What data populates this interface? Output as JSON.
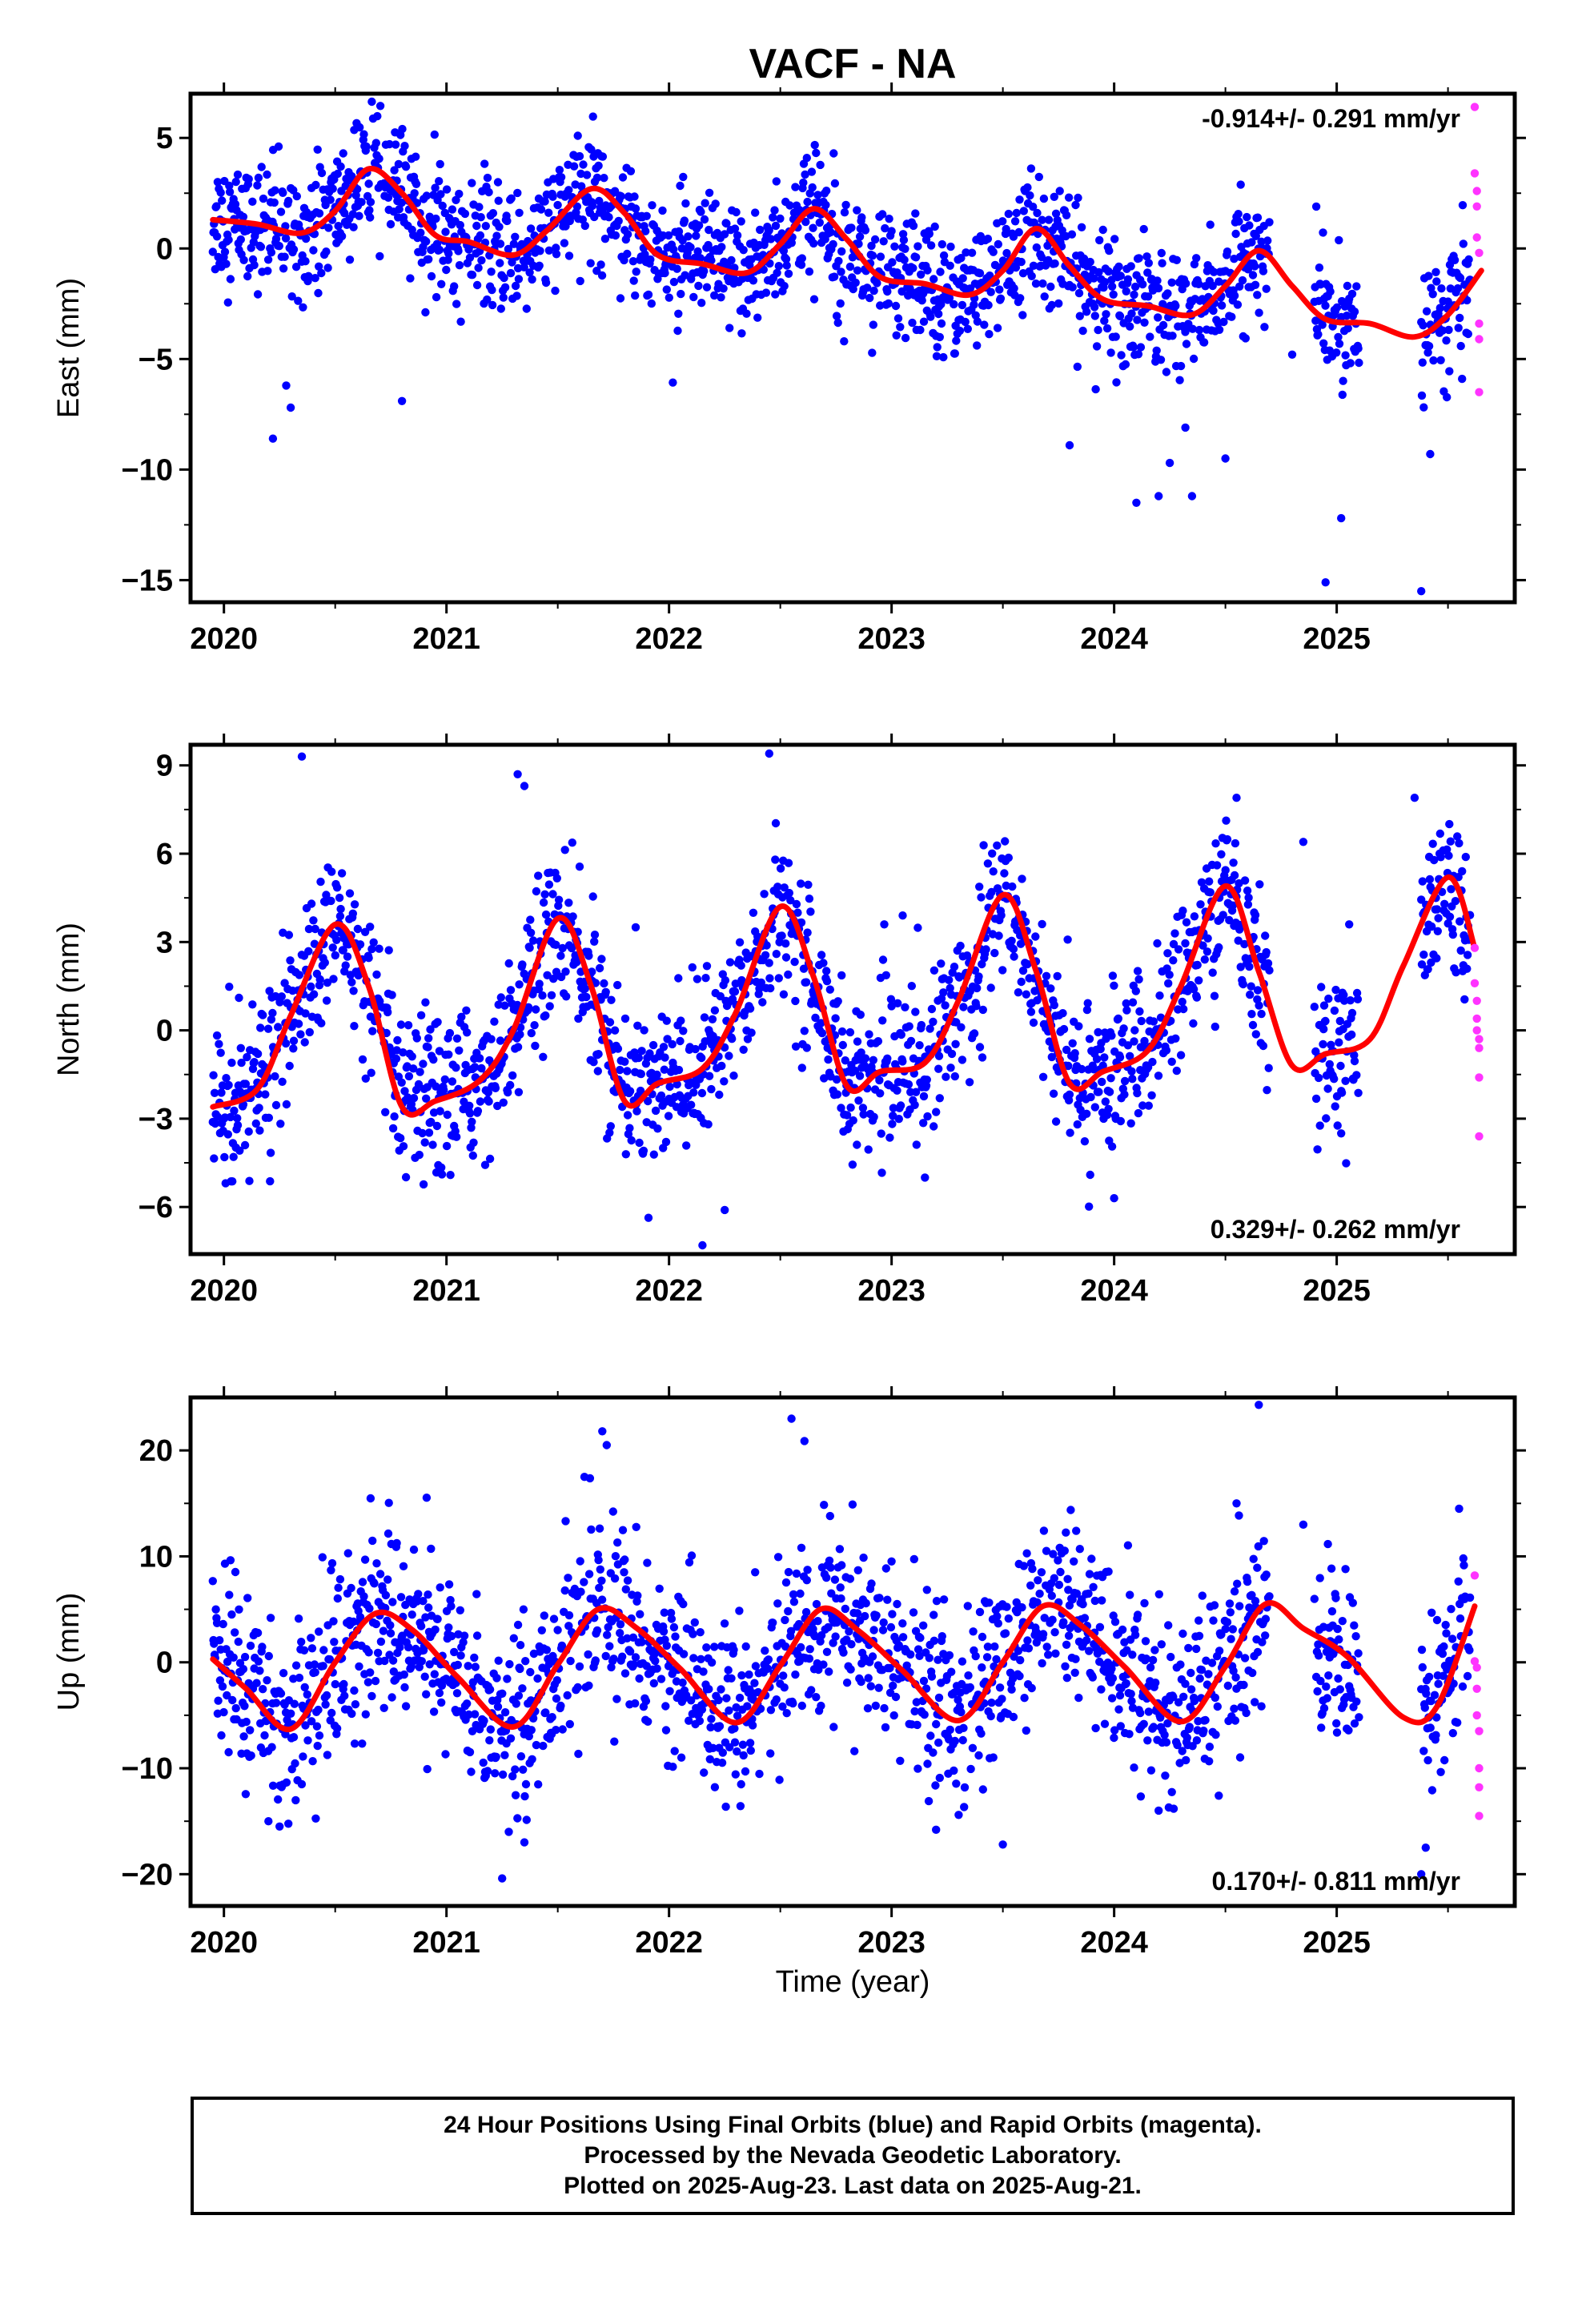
{
  "title": "VACF - NA",
  "xlabel": "Time (year)",
  "xticks": [
    "2020",
    "2021",
    "2022",
    "2023",
    "2024",
    "2025"
  ],
  "colors": {
    "final": "#0000ff",
    "rapid": "#ff33ff",
    "model": "#ff0000"
  },
  "footer": {
    "line1": "24 Hour Positions Using Final Orbits (blue) and Rapid Orbits (magenta).",
    "line2": "Processed by the Nevada Geodetic Laboratory.",
    "line3": "Plotted on 2025-Aug-23. Last data on 2025-Aug-21."
  },
  "chart_data": [
    {
      "type": "scatter",
      "ylabel": "East (mm)",
      "rate": "-0.914+/- 0.291 mm/yr",
      "rate_position": "top-right",
      "xlim": [
        2019.85,
        2025.8
      ],
      "ylim": [
        -16,
        7
      ],
      "yticks": [
        5,
        0,
        -5,
        -10,
        -15
      ],
      "model": {
        "x": [
          2019.95,
          2020.15,
          2020.35,
          2020.5,
          2020.65,
          2020.8,
          2020.95,
          2021.1,
          2021.3,
          2021.45,
          2021.65,
          2021.8,
          2021.95,
          2022.15,
          2022.35,
          2022.5,
          2022.65,
          2022.8,
          2022.95,
          2023.15,
          2023.35,
          2023.5,
          2023.65,
          2023.8,
          2023.95,
          2024.15,
          2024.35,
          2024.5,
          2024.65,
          2024.8,
          2024.95,
          2025.15,
          2025.35,
          2025.5,
          2025.65
        ],
        "y": [
          1.3,
          1.1,
          0.7,
          1.7,
          3.6,
          2.5,
          0.6,
          0.3,
          -0.3,
          0.8,
          2.7,
          1.6,
          -0.3,
          -0.7,
          -1.1,
          0.2,
          1.8,
          0.4,
          -1.3,
          -1.6,
          -2.1,
          -1.0,
          0.9,
          -0.8,
          -2.3,
          -2.6,
          -3.0,
          -1.7,
          -0.1,
          -1.7,
          -3.2,
          -3.4,
          -4.0,
          -3.0,
          -1.0
        ]
      },
      "final": {
        "ranges": [
          [
            2019.95,
            2024.7
          ],
          [
            2024.9,
            2025.1
          ],
          [
            2025.38,
            2025.6
          ]
        ],
        "outliers": [
          [
            2020.22,
            -8.6
          ],
          [
            2020.3,
            -7.2
          ],
          [
            2020.28,
            -6.2
          ],
          [
            2020.8,
            -6.9
          ],
          [
            2023.8,
            -8.9
          ],
          [
            2024.1,
            -11.5
          ],
          [
            2024.2,
            -11.2
          ],
          [
            2024.35,
            -11.2
          ],
          [
            2024.25,
            -9.7
          ],
          [
            2024.95,
            -15.1
          ],
          [
            2025.02,
            -12.2
          ],
          [
            2025.38,
            -15.5
          ],
          [
            2025.42,
            -9.3
          ],
          [
            2024.5,
            -9.5
          ],
          [
            2024.32,
            -8.1
          ],
          [
            2024.8,
            -4.8
          ]
        ]
      },
      "rapid": {
        "x": [
          2025.62,
          2025.62,
          2025.63,
          2025.63,
          2025.63,
          2025.64,
          2025.64,
          2025.64,
          2025.64
        ],
        "y": [
          6.4,
          3.4,
          2.6,
          1.9,
          0.5,
          -0.2,
          -3.4,
          -4.1,
          -6.5
        ]
      }
    },
    {
      "type": "scatter",
      "ylabel": "North (mm)",
      "rate": "0.329+/- 0.262 mm/yr",
      "rate_position": "bottom-right",
      "xlim": [
        2019.85,
        2025.8
      ],
      "ylim": [
        -7.6,
        9.7
      ],
      "yticks": [
        9,
        6,
        3,
        0,
        -3,
        -6
      ],
      "model": {
        "x": [
          2019.95,
          2020.15,
          2020.3,
          2020.5,
          2020.65,
          2020.8,
          2020.95,
          2021.15,
          2021.3,
          2021.5,
          2021.65,
          2021.8,
          2021.95,
          2022.15,
          2022.3,
          2022.5,
          2022.65,
          2022.8,
          2022.95,
          2023.15,
          2023.3,
          2023.5,
          2023.65,
          2023.8,
          2023.95,
          2024.15,
          2024.3,
          2024.5,
          2024.65,
          2024.8,
          2024.95,
          2025.15,
          2025.3,
          2025.5,
          2025.62
        ],
        "y": [
          -2.6,
          -2.0,
          0.5,
          3.6,
          1.5,
          -2.6,
          -2.4,
          -1.7,
          0.0,
          3.8,
          1.5,
          -2.4,
          -1.8,
          -1.3,
          0.6,
          4.2,
          1.8,
          -1.9,
          -1.4,
          -1.1,
          1.0,
          4.6,
          2.0,
          -1.8,
          -1.4,
          -0.7,
          1.5,
          4.9,
          2.0,
          -1.2,
          -0.8,
          -0.3,
          2.2,
          5.2,
          2.8
        ]
      },
      "final": {
        "ranges": [
          [
            2019.95,
            2024.7
          ],
          [
            2024.9,
            2025.1
          ],
          [
            2025.38,
            2025.6
          ]
        ],
        "outliers": [
          [
            2020.35,
            9.3
          ],
          [
            2021.32,
            8.7
          ],
          [
            2021.35,
            8.3
          ],
          [
            2022.45,
            9.4
          ],
          [
            2022.15,
            -7.3
          ],
          [
            2022.25,
            -6.1
          ],
          [
            2024.55,
            7.9
          ],
          [
            2025.35,
            7.9
          ],
          [
            2024.0,
            -5.7
          ],
          [
            2023.15,
            -5.0
          ],
          [
            2021.85,
            3.5
          ],
          [
            2023.05,
            3.9
          ],
          [
            2024.85,
            6.4
          ],
          [
            2025.02,
            -3.5
          ]
        ]
      },
      "rapid": {
        "x": [
          2025.62,
          2025.62,
          2025.63,
          2025.63,
          2025.63,
          2025.64,
          2025.64,
          2025.64,
          2025.64
        ],
        "y": [
          2.8,
          1.6,
          1.0,
          0.4,
          0.0,
          -0.3,
          -0.6,
          -1.6,
          -3.6
        ]
      }
    },
    {
      "type": "scatter",
      "ylabel": "Up (mm)",
      "rate": "0.170+/- 0.811 mm/yr",
      "rate_position": "bottom-right",
      "xlim": [
        2019.85,
        2025.8
      ],
      "ylim": [
        -23,
        25
      ],
      "yticks": [
        20,
        10,
        0,
        -10,
        -20
      ],
      "model": {
        "x": [
          2019.95,
          2020.1,
          2020.3,
          2020.5,
          2020.68,
          2020.85,
          2021.05,
          2021.3,
          2021.5,
          2021.68,
          2021.85,
          2022.05,
          2022.3,
          2022.5,
          2022.68,
          2022.85,
          2023.05,
          2023.3,
          2023.5,
          2023.68,
          2023.85,
          2024.05,
          2024.3,
          2024.5,
          2024.68,
          2024.85,
          2025.05,
          2025.3,
          2025.45,
          2025.62
        ],
        "y": [
          0.3,
          -2.5,
          -6.3,
          0.0,
          4.6,
          3.0,
          -1.4,
          -6.1,
          -0.2,
          5.0,
          3.3,
          -0.6,
          -5.7,
          -0.3,
          5.0,
          3.0,
          -0.8,
          -5.5,
          0.0,
          5.3,
          3.5,
          -0.5,
          -5.6,
          -0.4,
          5.5,
          3.2,
          0.5,
          -5.2,
          -4.2,
          5.3
        ]
      },
      "final": {
        "ranges": [
          [
            2019.95,
            2024.7
          ],
          [
            2024.9,
            2025.1
          ],
          [
            2025.38,
            2025.6
          ]
        ],
        "outliers": [
          [
            2021.25,
            -20.4
          ],
          [
            2021.35,
            -17.0
          ],
          [
            2021.28,
            -16.0
          ],
          [
            2021.7,
            21.8
          ],
          [
            2021.72,
            20.5
          ],
          [
            2022.55,
            23.0
          ],
          [
            2024.65,
            24.3
          ],
          [
            2023.5,
            -17.2
          ],
          [
            2025.38,
            -20.0
          ],
          [
            2025.4,
            -17.5
          ],
          [
            2020.2,
            -15.0
          ],
          [
            2020.25,
            -15.5
          ],
          [
            2024.2,
            -14.0
          ],
          [
            2021.62,
            17.5
          ],
          [
            2024.55,
            15.0
          ],
          [
            2025.55,
            14.5
          ],
          [
            2024.85,
            13.0
          ],
          [
            2023.2,
            -15.8
          ]
        ]
      },
      "rapid": {
        "x": [
          2025.62,
          2025.62,
          2025.63,
          2025.63,
          2025.63,
          2025.64,
          2025.64,
          2025.64,
          2025.64
        ],
        "y": [
          8.2,
          0.1,
          -0.5,
          -2.5,
          -5.0,
          -6.5,
          -10.0,
          -11.8,
          -14.5
        ]
      }
    }
  ]
}
